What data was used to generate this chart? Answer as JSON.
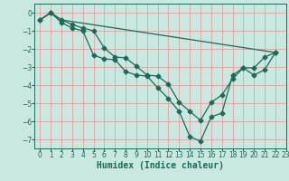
{
  "title": "",
  "xlabel": "Humidex (Indice chaleur)",
  "xlim": [
    -0.5,
    23
  ],
  "ylim": [
    -7.5,
    0.5
  ],
  "yticks": [
    0,
    -1,
    -2,
    -3,
    -4,
    -5,
    -6,
    -7
  ],
  "xticks": [
    0,
    1,
    2,
    3,
    4,
    5,
    6,
    7,
    8,
    9,
    10,
    11,
    12,
    13,
    14,
    15,
    16,
    17,
    18,
    19,
    20,
    21,
    22,
    23
  ],
  "background_color": "#c8e8e0",
  "grid_color": "#e8a0a0",
  "line_color": "#1a6b5a",
  "line1_x": [
    0,
    1,
    2,
    3,
    4,
    5,
    6,
    7,
    8,
    9,
    10,
    11,
    12,
    13,
    14,
    15,
    16,
    17,
    18,
    19,
    20,
    21,
    22
  ],
  "line1_y": [
    -0.4,
    0.0,
    -0.55,
    -0.85,
    -1.0,
    -2.35,
    -2.55,
    -2.6,
    -3.25,
    -3.45,
    -3.5,
    -4.15,
    -4.75,
    -5.45,
    -6.85,
    -7.1,
    -5.75,
    -5.55,
    -3.45,
    -3.05,
    -3.05,
    -2.45,
    -2.2
  ],
  "line2_x": [
    0,
    1,
    2,
    3,
    4,
    5,
    6,
    7,
    8,
    9,
    10,
    11,
    12,
    13,
    14,
    15,
    16,
    17,
    18,
    19,
    20,
    21,
    22
  ],
  "line2_y": [
    -0.4,
    0.0,
    -0.4,
    -0.65,
    -0.85,
    -1.0,
    -1.95,
    -2.45,
    -2.5,
    -2.95,
    -3.45,
    -3.5,
    -3.95,
    -4.95,
    -5.45,
    -5.95,
    -4.95,
    -4.55,
    -3.65,
    -3.05,
    -3.45,
    -3.15,
    -2.2
  ],
  "line3_x": [
    0,
    1,
    2,
    22
  ],
  "line3_y": [
    -0.4,
    0.0,
    -0.4,
    -2.2
  ],
  "fontsize_label": 7,
  "fontsize_tick": 5.5,
  "marker": "D",
  "markersize": 2.5,
  "linewidth": 0.9
}
